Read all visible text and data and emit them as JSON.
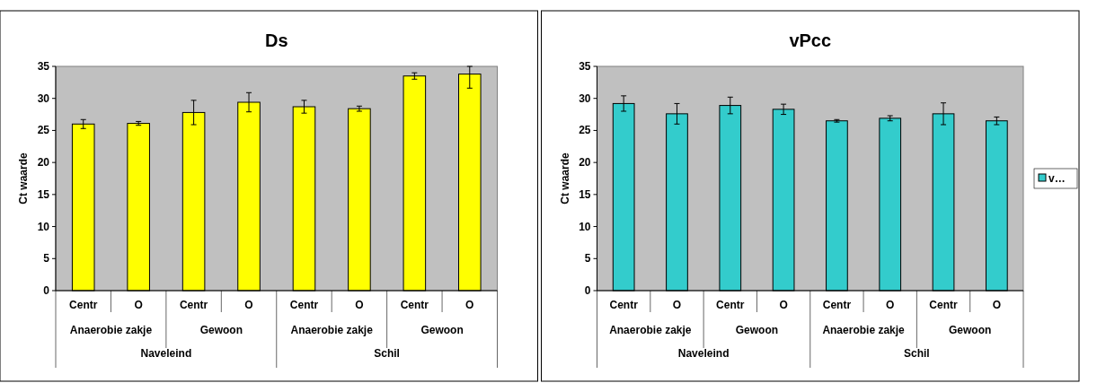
{
  "chart_data": [
    {
      "type": "bar",
      "title": "Ds",
      "ylabel": "Ct waarde",
      "categories": [
        "Centr",
        "O",
        "Centr",
        "O",
        "Centr",
        "O",
        "Centr",
        "O"
      ],
      "series": [
        {
          "color": "#ffff00",
          "values": [
            26.0,
            26.1,
            27.8,
            29.4,
            28.7,
            28.4,
            33.5,
            33.8
          ],
          "errors": [
            0.7,
            0.3,
            1.9,
            1.5,
            1.0,
            0.4,
            0.5,
            [
              31.6,
              35
            ]
          ]
        }
      ],
      "annotations": [
        "Anaerobie zakje",
        "Gewoon",
        "Anaerobie zakje",
        "Gewoon",
        "Naveleind",
        "Schil"
      ],
      "ylim": [
        0,
        35
      ],
      "yticks": [
        0,
        5,
        10,
        15,
        20,
        25,
        30,
        35
      ],
      "grid": false,
      "legend": false
    },
    {
      "type": "bar",
      "title": "vPcc",
      "ylabel": "Ct waarde",
      "categories": [
        "Centr",
        "O",
        "Centr",
        "O",
        "Centr",
        "O",
        "Centr",
        "O"
      ],
      "series": [
        {
          "name": "v…",
          "color": "#33cccc",
          "values": [
            29.2,
            27.6,
            28.9,
            28.3,
            26.5,
            26.9,
            27.6,
            26.5
          ],
          "errors": [
            1.2,
            1.6,
            1.3,
            0.8,
            0.2,
            0.4,
            1.7,
            0.6
          ]
        }
      ],
      "annotations": [
        "Anaerobie zakje",
        "Gewoon",
        "Anaerobie zakje",
        "Gewoon",
        "Naveleind",
        "Schil"
      ],
      "ylim": [
        0,
        35
      ],
      "yticks": [
        0,
        5,
        10,
        15,
        20,
        25,
        30,
        35
      ],
      "grid": false,
      "legend": "right"
    }
  ]
}
